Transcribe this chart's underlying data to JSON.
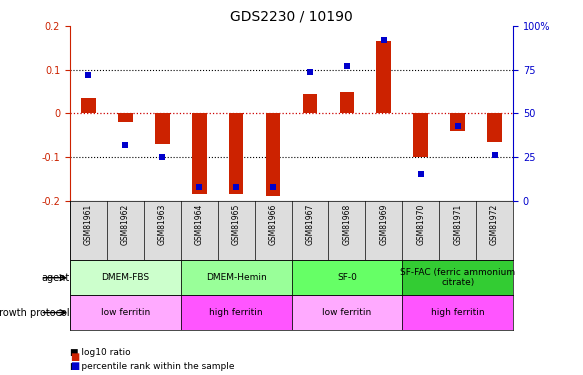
{
  "title": "GDS2230 / 10190",
  "samples": [
    "GSM81961",
    "GSM81962",
    "GSM81963",
    "GSM81964",
    "GSM81965",
    "GSM81966",
    "GSM81967",
    "GSM81968",
    "GSM81969",
    "GSM81970",
    "GSM81971",
    "GSM81972"
  ],
  "log10_ratio": [
    0.035,
    -0.02,
    -0.07,
    -0.185,
    -0.185,
    -0.19,
    0.045,
    0.05,
    0.165,
    -0.1,
    -0.04,
    -0.065
  ],
  "percentile_rank": [
    72,
    32,
    25,
    8,
    8,
    8,
    74,
    77,
    92,
    15,
    43,
    26
  ],
  "ylim": [
    -0.2,
    0.2
  ],
  "yticks_left": [
    -0.2,
    -0.1,
    0.0,
    0.1,
    0.2
  ],
  "ytick_labels_left": [
    "-0.2",
    "-0.1",
    "0",
    "0.1",
    "0.2"
  ],
  "ytick_labels_right": [
    "0",
    "25",
    "50",
    "75",
    "100%"
  ],
  "agent_groups": [
    {
      "label": "DMEM-FBS",
      "start": 0,
      "end": 3,
      "color": "#ccffcc"
    },
    {
      "label": "DMEM-Hemin",
      "start": 3,
      "end": 6,
      "color": "#99ff99"
    },
    {
      "label": "SF-0",
      "start": 6,
      "end": 9,
      "color": "#66ff66"
    },
    {
      "label": "SF-FAC (ferric ammonium\ncitrate)",
      "start": 9,
      "end": 12,
      "color": "#33cc33"
    }
  ],
  "protocol_groups": [
    {
      "label": "low ferritin",
      "start": 0,
      "end": 3,
      "color": "#ffaaff"
    },
    {
      "label": "high ferritin",
      "start": 3,
      "end": 6,
      "color": "#ff55ff"
    },
    {
      "label": "low ferritin",
      "start": 6,
      "end": 9,
      "color": "#ffaaff"
    },
    {
      "label": "high ferritin",
      "start": 9,
      "end": 12,
      "color": "#ff55ff"
    }
  ],
  "bar_color": "#cc2200",
  "dot_color": "#0000cc",
  "zero_line_color": "#cc0000",
  "grid_line_color": "#000000",
  "bg_color": "#ffffff",
  "label_row_bg": "#dddddd"
}
